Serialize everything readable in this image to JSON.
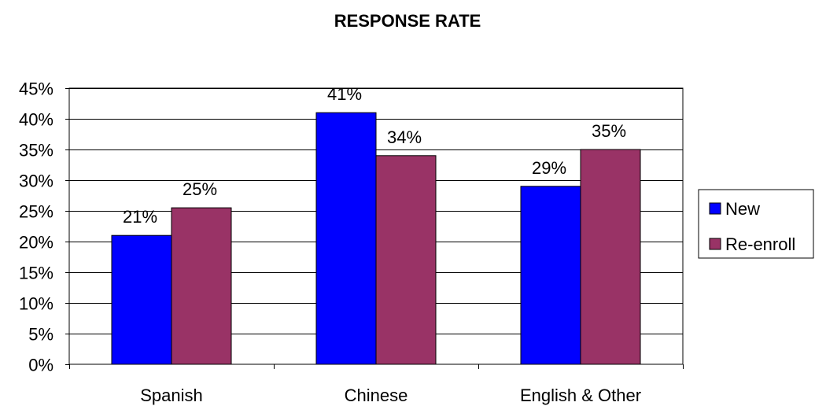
{
  "chart_data": {
    "type": "bar",
    "title": "RESPONSE RATE",
    "categories": [
      "Spanish",
      "Chinese",
      "English & Other"
    ],
    "series": [
      {
        "name": "New",
        "values": [
          21,
          41,
          29
        ],
        "labels": [
          "21%",
          "41%",
          "29%"
        ],
        "color": "#0000ff"
      },
      {
        "name": "Re-enroll",
        "values": [
          25.5,
          34,
          35
        ],
        "labels": [
          "25%",
          "34%",
          "35%"
        ],
        "color": "#993366"
      }
    ],
    "ylim": [
      0,
      45
    ],
    "yticks": [
      0,
      5,
      10,
      15,
      20,
      25,
      30,
      35,
      40,
      45
    ],
    "ytick_labels": [
      "0%",
      "5%",
      "10%",
      "15%",
      "20%",
      "25%",
      "30%",
      "35%",
      "40%",
      "45%"
    ],
    "grid": true,
    "legend_position": "right"
  }
}
